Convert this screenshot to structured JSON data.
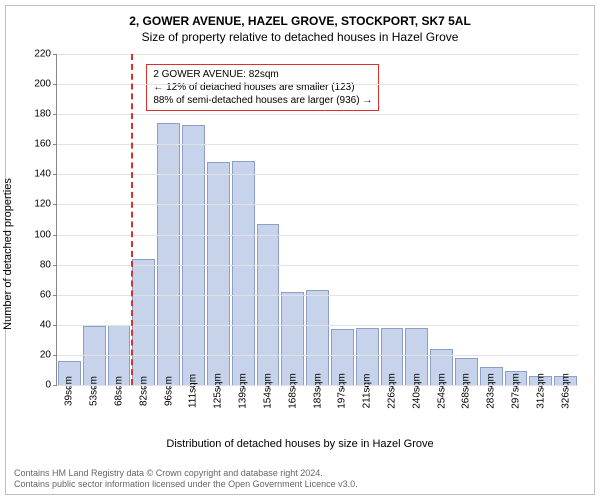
{
  "title": "2, GOWER AVENUE, HAZEL GROVE, STOCKPORT, SK7 5AL",
  "subtitle": "Size of property relative to detached houses in Hazel Grove",
  "ylabel": "Number of detached properties",
  "xlabel": "Distribution of detached houses by size in Hazel Grove",
  "chart": {
    "type": "histogram",
    "ymax": 220,
    "ytick_step": 20,
    "categories": [
      "39sqm",
      "53sqm",
      "68sqm",
      "82sqm",
      "96sqm",
      "111sqm",
      "125sqm",
      "139sqm",
      "154sqm",
      "168sqm",
      "183sqm",
      "197sqm",
      "211sqm",
      "226sqm",
      "240sqm",
      "254sqm",
      "268sqm",
      "283sqm",
      "297sqm",
      "312sqm",
      "326sqm"
    ],
    "values": [
      16,
      39,
      40,
      84,
      174,
      173,
      148,
      149,
      107,
      62,
      63,
      37,
      38,
      38,
      38,
      24,
      18,
      12,
      9,
      6,
      6
    ],
    "bar_fill": "#c6d3ea",
    "bar_stroke": "#8aa0c8",
    "background_color": "#ffffff",
    "axis_color": "#888888",
    "grid_color": "#e2e2e2",
    "marker": {
      "bin_index": 3,
      "color": "#d93030",
      "dash": "3,3"
    }
  },
  "annotation": {
    "border_color": "#d93030",
    "line1": "2 GOWER AVENUE: 82sqm",
    "line2": "← 12% of detached houses are smaller (123)",
    "line3": "88% of semi-detached houses are larger (936) →"
  },
  "footer_line1": "Contains HM Land Registry data © Crown copyright and database right 2024.",
  "footer_line2": "Contains public sector information licensed under the Open Government Licence v3.0."
}
